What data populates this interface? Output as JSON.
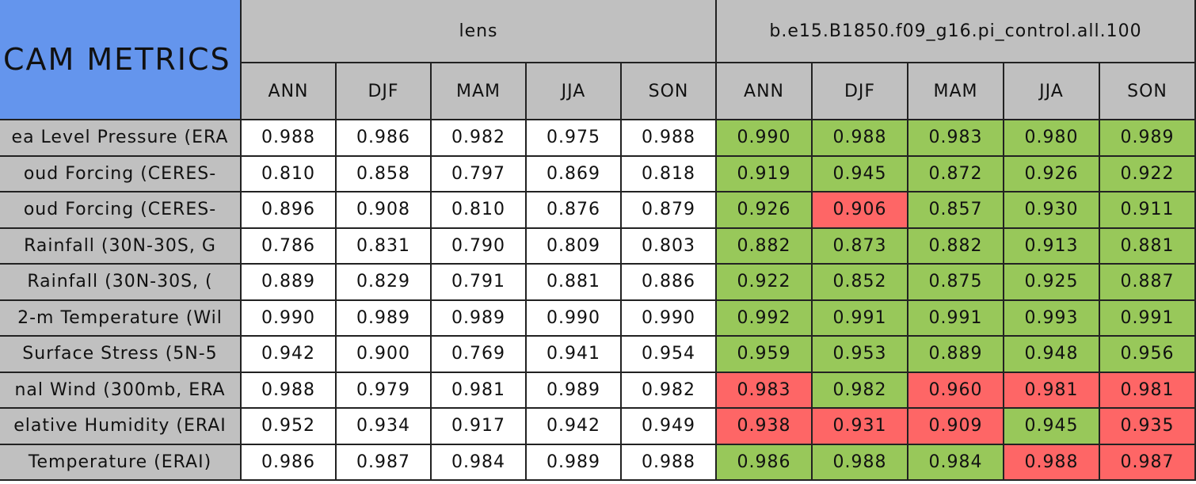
{
  "table": {
    "title": "CAM METRICS",
    "groups": [
      "lens",
      "b.e15.B1850.f09_g16.pi_control.all.100"
    ],
    "seasons": [
      "ANN",
      "DJF",
      "MAM",
      "JJA",
      "SON",
      "ANN",
      "DJF",
      "MAM",
      "JJA",
      "SON"
    ],
    "rows": [
      {
        "label": "ea Level Pressure (ERA",
        "cells": [
          "0.988",
          "0.986",
          "0.982",
          "0.975",
          "0.988",
          "0.990",
          "0.988",
          "0.983",
          "0.980",
          "0.989"
        ],
        "colors": [
          "#ffffff",
          "#ffffff",
          "#ffffff",
          "#ffffff",
          "#ffffff",
          "#98c85a",
          "#98c85a",
          "#98c85a",
          "#98c85a",
          "#98c85a"
        ]
      },
      {
        "label": "oud Forcing (CERES-",
        "cells": [
          "0.810",
          "0.858",
          "0.797",
          "0.869",
          "0.818",
          "0.919",
          "0.945",
          "0.872",
          "0.926",
          "0.922"
        ],
        "colors": [
          "#ffffff",
          "#ffffff",
          "#ffffff",
          "#ffffff",
          "#ffffff",
          "#98c85a",
          "#98c85a",
          "#98c85a",
          "#98c85a",
          "#98c85a"
        ]
      },
      {
        "label": "oud Forcing (CERES-",
        "cells": [
          "0.896",
          "0.908",
          "0.810",
          "0.876",
          "0.879",
          "0.926",
          "0.906",
          "0.857",
          "0.930",
          "0.911"
        ],
        "colors": [
          "#ffffff",
          "#ffffff",
          "#ffffff",
          "#ffffff",
          "#ffffff",
          "#98c85a",
          "#fe6666",
          "#98c85a",
          "#98c85a",
          "#98c85a"
        ]
      },
      {
        "label": "Rainfall (30N-30S, G",
        "cells": [
          "0.786",
          "0.831",
          "0.790",
          "0.809",
          "0.803",
          "0.882",
          "0.873",
          "0.882",
          "0.913",
          "0.881"
        ],
        "colors": [
          "#ffffff",
          "#ffffff",
          "#ffffff",
          "#ffffff",
          "#ffffff",
          "#98c85a",
          "#98c85a",
          "#98c85a",
          "#98c85a",
          "#98c85a"
        ]
      },
      {
        "label": "Rainfall (30N-30S, (",
        "cells": [
          "0.889",
          "0.829",
          "0.791",
          "0.881",
          "0.886",
          "0.922",
          "0.852",
          "0.875",
          "0.925",
          "0.887"
        ],
        "colors": [
          "#ffffff",
          "#ffffff",
          "#ffffff",
          "#ffffff",
          "#ffffff",
          "#98c85a",
          "#98c85a",
          "#98c85a",
          "#98c85a",
          "#98c85a"
        ]
      },
      {
        "label": "2-m Temperature (Wil",
        "cells": [
          "0.990",
          "0.989",
          "0.989",
          "0.990",
          "0.990",
          "0.992",
          "0.991",
          "0.991",
          "0.993",
          "0.991"
        ],
        "colors": [
          "#ffffff",
          "#ffffff",
          "#ffffff",
          "#ffffff",
          "#ffffff",
          "#98c85a",
          "#98c85a",
          "#98c85a",
          "#98c85a",
          "#98c85a"
        ]
      },
      {
        "label": "Surface Stress (5N-5",
        "cells": [
          "0.942",
          "0.900",
          "0.769",
          "0.941",
          "0.954",
          "0.959",
          "0.953",
          "0.889",
          "0.948",
          "0.956"
        ],
        "colors": [
          "#ffffff",
          "#ffffff",
          "#ffffff",
          "#ffffff",
          "#ffffff",
          "#98c85a",
          "#98c85a",
          "#98c85a",
          "#98c85a",
          "#98c85a"
        ]
      },
      {
        "label": "nal Wind (300mb, ERA",
        "cells": [
          "0.988",
          "0.979",
          "0.981",
          "0.989",
          "0.982",
          "0.983",
          "0.982",
          "0.960",
          "0.981",
          "0.981"
        ],
        "colors": [
          "#ffffff",
          "#ffffff",
          "#ffffff",
          "#ffffff",
          "#ffffff",
          "#fe6666",
          "#98c85a",
          "#fe6666",
          "#fe6666",
          "#fe6666"
        ]
      },
      {
        "label": "elative Humidity (ERAI",
        "cells": [
          "0.952",
          "0.934",
          "0.917",
          "0.942",
          "0.949",
          "0.938",
          "0.931",
          "0.909",
          "0.945",
          "0.935"
        ],
        "colors": [
          "#ffffff",
          "#ffffff",
          "#ffffff",
          "#ffffff",
          "#ffffff",
          "#fe6666",
          "#fe6666",
          "#fe6666",
          "#98c85a",
          "#fe6666"
        ]
      },
      {
        "label": "Temperature (ERAI)",
        "cells": [
          "0.986",
          "0.987",
          "0.984",
          "0.989",
          "0.988",
          "0.986",
          "0.988",
          "0.984",
          "0.988",
          "0.987"
        ],
        "colors": [
          "#ffffff",
          "#ffffff",
          "#ffffff",
          "#ffffff",
          "#ffffff",
          "#98c85a",
          "#98c85a",
          "#98c85a",
          "#fe6666",
          "#fe6666"
        ]
      }
    ]
  }
}
